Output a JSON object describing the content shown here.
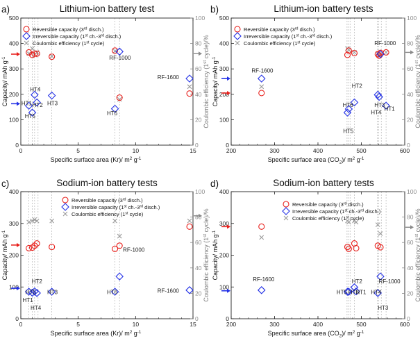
{
  "figure": {
    "legend": {
      "rev_main": "Reversible capacity (3",
      "rev_sup": "rd",
      "rev_tail": " disch.)",
      "irr_main": "Irreversible capacity (1",
      "irr_sup1": "st",
      "irr_mid": " ch.-3",
      "irr_sup2": "rd",
      "irr_tail": " disch.)",
      "ce_main": "Coulombic efficiency (1",
      "ce_sup": "st",
      "ce_tail": " cycle)"
    },
    "ylabel_left_main": "Capacity/ mAh g",
    "ylabel_left_sup": "-1",
    "ylabel_right_main": "Coulombic efficiency (1",
    "ylabel_right_sup": "st",
    "ylabel_right_tail": " cycle)/%",
    "xlabel_kr_main": "Specific surface area (Kr)/ m",
    "xlabel_co2_main": "Specific surface area (CO",
    "xlabel_co2_sub": "2",
    "xlabel_co2_mid": ")/ m",
    "xlabel_sup2": "2",
    "xlabel_tail": " g",
    "xlabel_sup_m1": "-1"
  },
  "chart_data": [
    {
      "panel": "a)",
      "title": "Lithium-ion battery test",
      "type": "scatter",
      "axis": "kr",
      "xlim": [
        0,
        15
      ],
      "xticks": [
        0,
        5,
        10,
        15
      ],
      "ylim": [
        0,
        500
      ],
      "yticks": [
        0,
        100,
        200,
        300,
        400,
        500
      ],
      "y2lim": [
        0,
        100
      ],
      "y2ticks": [
        0,
        20,
        40,
        60,
        80,
        100
      ],
      "vlines": [
        0.7,
        1.0,
        1.2,
        1.5,
        2.7,
        8.2,
        8.6
      ],
      "series": [
        {
          "name": "Reversible capacity",
          "x": [
            0.7,
            1.0,
            1.2,
            1.4,
            2.7,
            8.2,
            8.6,
            14.7
          ],
          "y": [
            365,
            355,
            360,
            360,
            348,
            372,
            187,
            203
          ]
        },
        {
          "name": "Irreversible capacity",
          "x": [
            0.7,
            1.0,
            1.2,
            1.4,
            2.7,
            8.2,
            8.6,
            14.7
          ],
          "y": [
            155,
            128,
            198,
            168,
            195,
            143,
            368,
            262
          ]
        },
        {
          "name": "Coulombic efficiency",
          "x": [
            0.7,
            1.0,
            1.2,
            1.4,
            2.7,
            8.2,
            8.6,
            14.7
          ],
          "y": [
            72,
            76,
            71,
            73,
            70,
            74,
            36,
            46
          ]
        }
      ],
      "labels": [
        {
          "text": "HT1",
          "x": 0.05,
          "y": 157
        },
        {
          "text": "HT2",
          "x": 1.0,
          "y": 150
        },
        {
          "text": "HT4",
          "x": 0.8,
          "y": 212
        },
        {
          "text": "HT5",
          "x": 0.35,
          "y": 106
        },
        {
          "text": "HT3",
          "x": 2.3,
          "y": 157
        },
        {
          "text": "HT6",
          "x": 7.5,
          "y": 118
        },
        {
          "text": "RF-1000",
          "x": 7.7,
          "y": 336
        },
        {
          "text": "RF-1600",
          "x": 11.9,
          "y": 260
        }
      ],
      "left_arrows": [
        {
          "series": 1,
          "y": 163
        },
        {
          "series": 0,
          "y": 358
        }
      ],
      "right_arrows": [
        {
          "series": 2,
          "y": 72
        }
      ]
    },
    {
      "panel": "b)",
      "title": "Lithium-ion battery tests",
      "type": "scatter",
      "axis": "co2",
      "xlim": [
        200,
        600
      ],
      "xticks": [
        200,
        300,
        400,
        500,
        600
      ],
      "ylim": [
        0,
        500
      ],
      "yticks": [
        0,
        100,
        200,
        300,
        400,
        500
      ],
      "y2lim": [
        0,
        100
      ],
      "y2ticks": [
        0,
        20,
        40,
        60,
        80,
        100
      ],
      "vlines": [
        467,
        470,
        474,
        484,
        537,
        540,
        546,
        557
      ],
      "series": [
        {
          "name": "Reversible capacity",
          "x": [
            270,
            468,
            471,
            484,
            538,
            541,
            544,
            557
          ],
          "y": [
            205,
            355,
            372,
            362,
            358,
            352,
            363,
            365
          ]
        },
        {
          "name": "Irreversible capacity",
          "x": [
            270,
            468,
            471,
            484,
            538,
            541,
            544,
            557
          ],
          "y": [
            262,
            128,
            142,
            168,
            198,
            190,
            358,
            155
          ]
        },
        {
          "name": "Coulombic efficiency",
          "x": [
            270,
            468,
            471,
            484,
            538,
            541,
            544,
            557
          ],
          "y": [
            46,
            76,
            75,
            73,
            72,
            71,
            71,
            73
          ]
        }
      ],
      "labels": [
        {
          "text": "RF-1600",
          "x": 247,
          "y": 285
        },
        {
          "text": "RF-1000",
          "x": 530,
          "y": 393
        },
        {
          "text": "HT2",
          "x": 478,
          "y": 225
        },
        {
          "text": "HT6",
          "x": 457,
          "y": 150
        },
        {
          "text": "HT3",
          "x": 530,
          "y": 150
        },
        {
          "text": "HT4",
          "x": 522,
          "y": 122
        },
        {
          "text": "HT1",
          "x": 553,
          "y": 135
        },
        {
          "text": "HT5",
          "x": 458,
          "y": 48
        }
      ],
      "left_arrows": [
        {
          "series": 0,
          "y": 205
        },
        {
          "series": 1,
          "y": 262
        }
      ],
      "right_arrows": [
        {
          "series": 2,
          "y": 73
        }
      ]
    },
    {
      "panel": "c)",
      "title": "Sodium-ion battery tests",
      "type": "scatter",
      "axis": "kr",
      "xlim": [
        0,
        15
      ],
      "xticks": [
        0,
        5,
        10,
        15
      ],
      "ylim": [
        0,
        400
      ],
      "yticks": [
        0,
        100,
        200,
        300,
        400
      ],
      "y2lim": [
        0,
        100
      ],
      "y2ticks": [
        0,
        20,
        40,
        60,
        80,
        100
      ],
      "vlines": [
        0.7,
        1.0,
        1.2,
        1.5,
        2.7,
        8.2,
        8.6
      ],
      "series": [
        {
          "name": "Reversible capacity",
          "x": [
            0.7,
            1.0,
            1.2,
            1.4,
            2.7,
            8.2,
            8.6,
            14.7
          ],
          "y": [
            222,
            224,
            230,
            237,
            226,
            220,
            230,
            290
          ]
        },
        {
          "name": "Irreversible capacity",
          "x": [
            0.7,
            1.0,
            1.2,
            1.4,
            2.7,
            8.2,
            8.6,
            14.7
          ],
          "y": [
            85,
            82,
            86,
            81,
            85,
            85,
            133,
            90
          ]
        },
        {
          "name": "Coulombic efficiency",
          "x": [
            0.7,
            1.0,
            1.2,
            1.4,
            2.7,
            8.2,
            8.6,
            14.7
          ],
          "y": [
            76,
            77,
            78,
            77,
            77,
            77,
            65,
            77
          ]
        }
      ],
      "labels": [
        {
          "text": "HT2",
          "x": 0.95,
          "y": 111
        },
        {
          "text": "HT5",
          "x": 0.4,
          "y": 78
        },
        {
          "text": "HT1",
          "x": 0.15,
          "y": 52
        },
        {
          "text": "HT4",
          "x": 0.85,
          "y": 28
        },
        {
          "text": "HT3",
          "x": 2.3,
          "y": 78
        },
        {
          "text": "HT6",
          "x": 7.5,
          "y": 78
        },
        {
          "text": "RF-1000",
          "x": 8.9,
          "y": 211
        },
        {
          "text": "RF-1600",
          "x": 11.9,
          "y": 82
        }
      ],
      "left_arrows": [
        {
          "series": 0,
          "y": 232
        },
        {
          "series": 1,
          "y": 96
        }
      ],
      "right_arrows": [
        {
          "series": 2,
          "y": 81
        }
      ]
    },
    {
      "panel": "d)",
      "title": "Sodium-ion battery tests",
      "type": "scatter",
      "axis": "co2",
      "xlim": [
        200,
        600
      ],
      "xticks": [
        200,
        300,
        400,
        500,
        600
      ],
      "ylim": [
        0,
        400
      ],
      "yticks": [
        0,
        100,
        200,
        300,
        400
      ],
      "y2lim": [
        0,
        100
      ],
      "y2ticks": [
        0,
        20,
        40,
        60,
        80,
        100
      ],
      "vlines": [
        467,
        470,
        474,
        484,
        537,
        540,
        546,
        557
      ],
      "series": [
        {
          "name": "Reversible capacity",
          "x": [
            270,
            468,
            471,
            484,
            488,
            538,
            544
          ],
          "y": [
            290,
            226,
            220,
            237,
            222,
            230,
            225
          ]
        },
        {
          "name": "Irreversible capacity",
          "x": [
            270,
            468,
            471,
            484,
            488,
            538,
            544
          ],
          "y": [
            90,
            85,
            85,
            99,
            86,
            81,
            133
          ]
        },
        {
          "name": "Coulombic efficiency",
          "x": [
            270,
            468,
            471,
            484,
            488,
            538,
            544
          ],
          "y": [
            64,
            77,
            76,
            77,
            76,
            74,
            67
          ]
        }
      ],
      "labels": [
        {
          "text": "RF-1600",
          "x": 250,
          "y": 118
        },
        {
          "text": "HT2",
          "x": 478,
          "y": 111
        },
        {
          "text": "RF-1000",
          "x": 540,
          "y": 111
        },
        {
          "text": "HT5",
          "x": 443,
          "y": 78
        },
        {
          "text": "HT6",
          "x": 470,
          "y": 78
        },
        {
          "text": "HT1",
          "x": 487,
          "y": 78
        },
        {
          "text": "HT4",
          "x": 522,
          "y": 78
        },
        {
          "text": "HT3",
          "x": 538,
          "y": 28
        }
      ],
      "left_arrows": [
        {
          "series": 0,
          "y": 290
        },
        {
          "series": 1,
          "y": 88
        }
      ],
      "right_arrows": [
        {
          "series": 2,
          "y": 72
        }
      ]
    }
  ]
}
